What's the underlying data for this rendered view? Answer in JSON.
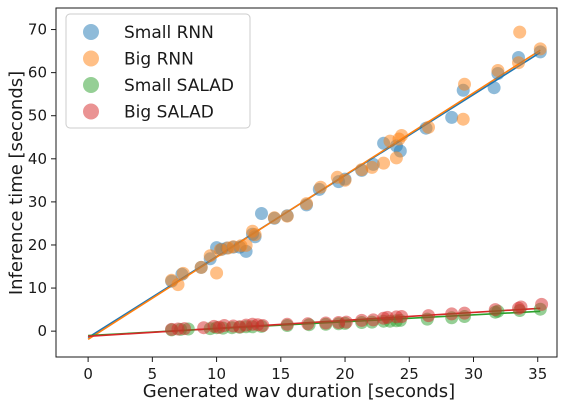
{
  "chart_data": {
    "type": "scatter",
    "title": "",
    "xlabel": "Generated wav duration [seconds]",
    "ylabel": "Inference time [seconds]",
    "xlim": [
      -2.5,
      36.5
    ],
    "ylim": [
      -6,
      75
    ],
    "xticks": [
      0,
      5,
      10,
      15,
      20,
      25,
      30,
      35
    ],
    "yticks": [
      0,
      10,
      20,
      30,
      40,
      50,
      60,
      70
    ],
    "grid": false,
    "legend_position": "top-left",
    "series": [
      {
        "name": "Small RNN",
        "color": "#1f77b4",
        "x": [
          6.5,
          7.3,
          8.8,
          9.5,
          10.0,
          10.4,
          10.8,
          11.3,
          11.8,
          12.3,
          12.8,
          13.0,
          13.5,
          14.5,
          15.5,
          17.0,
          18.0,
          19.5,
          20.0,
          21.3,
          22.2,
          23.0,
          24.0,
          24.3,
          26.3,
          28.3,
          29.2,
          31.6,
          31.9,
          33.5,
          35.2
        ],
        "y": [
          11.6,
          13.2,
          14.8,
          16.8,
          19.4,
          19.0,
          19.3,
          19.5,
          19.5,
          18.5,
          22.5,
          21.9,
          27.3,
          26.2,
          26.8,
          29.3,
          32.9,
          34.7,
          35.3,
          37.3,
          38.7,
          43.6,
          43.0,
          41.8,
          47.1,
          49.6,
          55.9,
          56.5,
          59.8,
          63.5,
          64.8
        ]
      },
      {
        "name": "Big RNN",
        "color": "#ff7f0e",
        "x": [
          6.5,
          7.0,
          7.4,
          8.8,
          9.5,
          10.0,
          10.3,
          10.9,
          11.3,
          11.9,
          12.3,
          12.8,
          13.0,
          14.5,
          15.5,
          17.0,
          18.1,
          19.4,
          20.0,
          21.3,
          22.1,
          23.0,
          23.5,
          24.0,
          24.2,
          24.4,
          26.5,
          29.2,
          29.3,
          31.9,
          33.5,
          33.6,
          35.2
        ],
        "y": [
          11.8,
          10.8,
          13.4,
          14.8,
          17.5,
          13.5,
          18.9,
          19.3,
          19.6,
          19.8,
          19.9,
          23.2,
          22.4,
          26.3,
          26.7,
          29.6,
          33.4,
          35.7,
          35.0,
          37.5,
          38.0,
          39.0,
          44.1,
          40.2,
          44.6,
          45.4,
          47.3,
          49.2,
          57.3,
          60.5,
          62.3,
          69.4,
          65.5
        ]
      },
      {
        "name": "Small SALAD",
        "color": "#2ca02c",
        "x": [
          6.5,
          7.2,
          7.8,
          9.5,
          10.0,
          10.5,
          11.2,
          11.8,
          12.3,
          12.8,
          13.5,
          15.5,
          17.2,
          18.5,
          19.5,
          20.0,
          21.3,
          22.1,
          23.0,
          23.5,
          24.0,
          24.3,
          26.4,
          28.3,
          29.3,
          31.7,
          31.9,
          33.6,
          35.2
        ],
        "y": [
          0.3,
          0.4,
          0.5,
          0.6,
          0.8,
          0.7,
          0.8,
          0.9,
          1.0,
          1.0,
          1.1,
          1.3,
          1.5,
          1.6,
          1.7,
          1.8,
          2.0,
          2.1,
          2.3,
          2.3,
          2.4,
          2.5,
          2.8,
          3.1,
          3.4,
          4.4,
          4.6,
          4.8,
          5.1
        ]
      },
      {
        "name": "Big SALAD",
        "color": "#d62728",
        "x": [
          6.5,
          7.0,
          7.5,
          9.0,
          9.8,
          10.2,
          10.6,
          11.3,
          11.8,
          12.3,
          12.8,
          13.2,
          13.6,
          15.5,
          17.1,
          18.5,
          19.5,
          20.1,
          21.3,
          22.2,
          23.0,
          23.3,
          24.0,
          24.4,
          26.5,
          28.3,
          29.3,
          31.7,
          33.5,
          33.7,
          35.3
        ],
        "y": [
          0.4,
          0.5,
          0.6,
          0.8,
          1.1,
          0.9,
          1.3,
          1.2,
          1.0,
          1.4,
          1.6,
          1.5,
          1.3,
          1.6,
          1.7,
          1.9,
          2.0,
          2.1,
          2.5,
          2.6,
          3.0,
          3.2,
          3.3,
          3.4,
          3.6,
          4.0,
          4.2,
          5.0,
          5.3,
          5.6,
          6.2
        ]
      }
    ],
    "fit_lines": [
      {
        "series": "Small RNN",
        "color": "#1f77b4",
        "x": [
          0,
          35.2
        ],
        "y": [
          -1.5,
          64.7
        ]
      },
      {
        "series": "Big RNN",
        "color": "#ff7f0e",
        "x": [
          0,
          35.2
        ],
        "y": [
          -1.9,
          65.2
        ]
      },
      {
        "series": "Small SALAD",
        "color": "#2ca02c",
        "x": [
          0,
          35.2
        ],
        "y": [
          -1.0,
          4.6
        ]
      },
      {
        "series": "Big SALAD",
        "color": "#d62728",
        "x": [
          0,
          35.2
        ],
        "y": [
          -1.2,
          5.3
        ]
      }
    ]
  }
}
